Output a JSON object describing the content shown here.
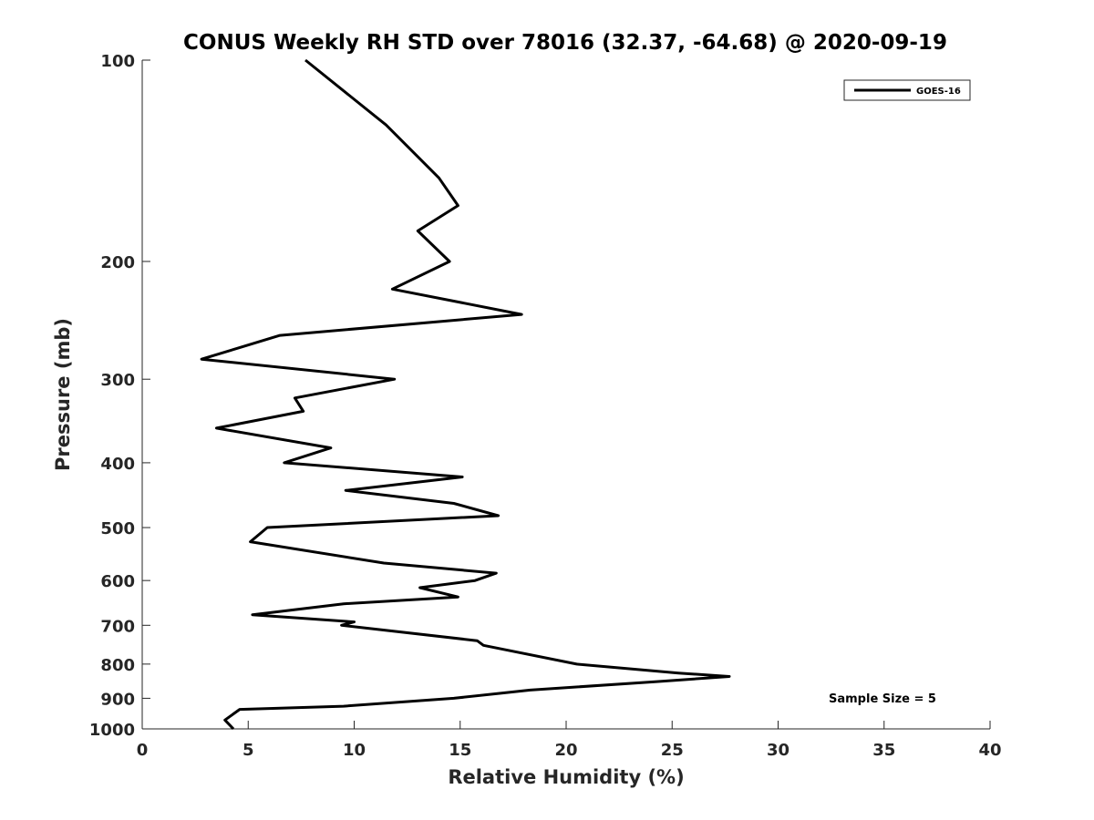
{
  "chart_data": {
    "type": "line",
    "title": "CONUS Weekly RH STD over 78016 (32.37, -64.68) @ 2020-09-19",
    "xlabel": "Relative Humidity (%)",
    "ylabel": "Pressure (mb)",
    "xlim": [
      0,
      40
    ],
    "ylim": [
      100,
      1000
    ],
    "y_scale": "log",
    "y_reversed": true,
    "x_ticks": [
      0,
      5,
      10,
      15,
      20,
      25,
      30,
      35,
      40
    ],
    "y_ticks": [
      100,
      200,
      300,
      400,
      500,
      600,
      700,
      800,
      900,
      1000
    ],
    "grid": false,
    "legend": {
      "position": "top-right",
      "entries": [
        "GOES-16"
      ]
    },
    "annotation": "Sample Size = 5",
    "series": [
      {
        "name": "GOES-16",
        "color": "#000000",
        "points": [
          [
            7.7,
            100
          ],
          [
            11.5,
            125
          ],
          [
            14,
            150
          ],
          [
            14.9,
            165
          ],
          [
            13,
            180
          ],
          [
            14.5,
            200
          ],
          [
            11.8,
            220
          ],
          [
            17.9,
            240
          ],
          [
            6.5,
            258
          ],
          [
            2.8,
            280
          ],
          [
            11.9,
            300
          ],
          [
            7.2,
            320
          ],
          [
            7.6,
            335
          ],
          [
            3.5,
            355
          ],
          [
            8.9,
            380
          ],
          [
            6.7,
            400
          ],
          [
            15.1,
            420
          ],
          [
            9.6,
            440
          ],
          [
            14.7,
            460
          ],
          [
            16.8,
            480
          ],
          [
            5.9,
            500
          ],
          [
            5.1,
            525
          ],
          [
            11.4,
            565
          ],
          [
            16.7,
            585
          ],
          [
            15.7,
            600
          ],
          [
            13.1,
            615
          ],
          [
            14.9,
            635
          ],
          [
            9.5,
            650
          ],
          [
            5.2,
            675
          ],
          [
            10,
            692
          ],
          [
            9.4,
            700
          ],
          [
            15.8,
            738
          ],
          [
            16.1,
            750
          ],
          [
            20.5,
            800
          ],
          [
            25.3,
            825
          ],
          [
            27.7,
            835
          ],
          [
            24.2,
            850
          ],
          [
            18.3,
            875
          ],
          [
            14.7,
            900
          ],
          [
            9.5,
            925
          ],
          [
            4.6,
            935
          ],
          [
            3.9,
            970
          ],
          [
            4.3,
            1000
          ]
        ]
      }
    ]
  }
}
